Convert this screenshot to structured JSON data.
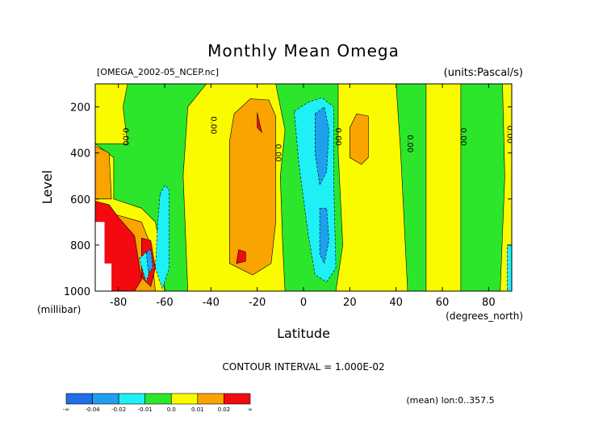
{
  "chart_data": {
    "type": "heatmap",
    "title": "Monthly Mean Omega",
    "file_label": "[OMEGA_2002-05_NCEP.nc]",
    "units_label": "(units:Pascal/s)",
    "xlabel": "Latitude",
    "x_units_label": "(degrees_north)",
    "ylabel": "Level",
    "y_units_label": "(millibar)",
    "xlim": [
      -90,
      90
    ],
    "ylim": [
      1000,
      100
    ],
    "x_ticks": [
      -80,
      -60,
      -40,
      -20,
      0,
      20,
      40,
      60,
      80
    ],
    "x_tick_labels": [
      "-80",
      "-60",
      "-40",
      "-20",
      "0",
      "20",
      "40",
      "60",
      "80"
    ],
    "y_ticks": [
      200,
      400,
      600,
      800,
      1000
    ],
    "y_tick_labels": [
      "200",
      "400",
      "600",
      "800",
      "1000"
    ],
    "contour_interval_text": "CONTOUR INTERVAL = 1.000E-02",
    "footnote": "(mean) lon:0..357.5",
    "contour_line_label": "0.00",
    "colorbar": {
      "labels": [
        "-∞",
        "-0.04",
        "-0.02",
        "-0.01",
        "0.0",
        "0.01",
        "0.02",
        "∞"
      ],
      "colors": [
        "#1f6fe8",
        "#1fa0ec",
        "#1ff0f6",
        "#2ce62c",
        "#fbfb00",
        "#f9a400",
        "#f20a10"
      ],
      "bounds": [
        "-inf",
        -0.04,
        -0.02,
        -0.01,
        0.0,
        0.01,
        0.02,
        "inf"
      ]
    },
    "regions": [
      {
        "level": "positive_weak",
        "value_range": [
          0.0,
          0.01
        ],
        "color": "#fbfb00",
        "polygon": [
          [
            -90,
            360
          ],
          [
            -82,
            420
          ],
          [
            -82,
            600
          ],
          [
            -70,
            640
          ],
          [
            -64,
            700
          ],
          [
            -62,
            800
          ],
          [
            -60,
            1000
          ],
          [
            -90,
            1000
          ]
        ]
      },
      {
        "level": "positive_weak",
        "value_range": [
          0.0,
          0.01
        ],
        "color": "#fbfb00",
        "polygon": [
          [
            -90,
            100
          ],
          [
            -76,
            100
          ],
          [
            -78,
            200
          ],
          [
            -76,
            360
          ],
          [
            -90,
            360
          ]
        ]
      },
      {
        "level": "positive_weak",
        "value_range": [
          0.0,
          0.01
        ],
        "color": "#fbfb00",
        "polygon": [
          [
            -50,
            200
          ],
          [
            -42,
            100
          ],
          [
            -12,
            100
          ],
          [
            -10,
            200
          ],
          [
            -8,
            300
          ],
          [
            -10,
            500
          ],
          [
            -9,
            800
          ],
          [
            -8,
            1000
          ],
          [
            -50,
            1000
          ],
          [
            -52,
            500
          ]
        ]
      },
      {
        "level": "positive_weak",
        "value_range": [
          0.0,
          0.01
        ],
        "color": "#fbfb00",
        "polygon": [
          [
            15,
            100
          ],
          [
            40,
            100
          ],
          [
            42,
            400
          ],
          [
            45,
            1000
          ],
          [
            14,
            1000
          ],
          [
            17,
            800
          ],
          [
            15,
            400
          ]
        ]
      },
      {
        "level": "positive_weak",
        "value_range": [
          0.0,
          0.01
        ],
        "color": "#fbfb00",
        "polygon": [
          [
            53,
            100
          ],
          [
            68,
            100
          ],
          [
            68,
            1000
          ],
          [
            53,
            1000
          ]
        ]
      },
      {
        "level": "positive_weak",
        "value_range": [
          0.0,
          0.01
        ],
        "color": "#fbfb00",
        "polygon": [
          [
            86,
            100
          ],
          [
            90,
            100
          ],
          [
            90,
            1000
          ],
          [
            85,
            1000
          ],
          [
            87,
            500
          ]
        ]
      },
      {
        "level": "positive_mid",
        "value_range": [
          0.01,
          0.02
        ],
        "color": "#f9a400",
        "polygon": [
          [
            -90,
            370
          ],
          [
            -84,
            400
          ],
          [
            -83,
            600
          ],
          [
            -90,
            600
          ]
        ]
      },
      {
        "level": "positive_mid",
        "value_range": [
          0.01,
          0.02
        ],
        "color": "#f9a400",
        "polygon": [
          [
            -90,
            640
          ],
          [
            -84,
            660
          ],
          [
            -77,
            680
          ],
          [
            -70,
            700
          ],
          [
            -66,
            800
          ],
          [
            -64,
            1000
          ],
          [
            -90,
            1000
          ]
        ]
      },
      {
        "level": "positive_mid",
        "value_range": [
          0.01,
          0.02
        ],
        "color": "#f9a400",
        "polygon": [
          [
            -30,
            230
          ],
          [
            -23,
            165
          ],
          [
            -15,
            170
          ],
          [
            -12,
            240
          ],
          [
            -12,
            700
          ],
          [
            -14,
            880
          ],
          [
            -22,
            930
          ],
          [
            -32,
            880
          ],
          [
            -32,
            350
          ]
        ]
      },
      {
        "level": "positive_mid",
        "value_range": [
          0.01,
          0.02
        ],
        "color": "#f9a400",
        "polygon": [
          [
            20,
            290
          ],
          [
            23,
            230
          ],
          [
            28,
            240
          ],
          [
            28,
            420
          ],
          [
            25,
            450
          ],
          [
            20,
            420
          ]
        ]
      },
      {
        "level": "positive_strong",
        "value_range": [
          0.02,
          "inf"
        ],
        "color": "#f20a10",
        "polygon": [
          [
            -90,
            610
          ],
          [
            -84,
            625
          ],
          [
            -80,
            680
          ],
          [
            -73,
            760
          ],
          [
            -70,
            950
          ],
          [
            -73,
            1000
          ],
          [
            -90,
            1000
          ]
        ]
      },
      {
        "level": "positive_strong",
        "value_range": [
          0.02,
          "inf"
        ],
        "color": "#f20a10",
        "polygon": [
          [
            -70,
            770
          ],
          [
            -66,
            780
          ],
          [
            -64,
            900
          ],
          [
            -66,
            980
          ],
          [
            -70,
            940
          ]
        ]
      },
      {
        "level": "positive_strong",
        "value_range": [
          0.02,
          "inf"
        ],
        "color": "#f20a10",
        "polygon": [
          [
            -20,
            225
          ],
          [
            -19,
            270
          ],
          [
            -18,
            310
          ],
          [
            -20,
            290
          ]
        ]
      },
      {
        "level": "positive_strong",
        "value_range": [
          0.02,
          "inf"
        ],
        "color": "#f20a10",
        "polygon": [
          [
            -28,
            820
          ],
          [
            -25,
            830
          ],
          [
            -25,
            870
          ],
          [
            -29,
            880
          ]
        ]
      },
      {
        "level": "negative_weak",
        "value_range": [
          -0.02,
          -0.01
        ],
        "color": "#1ff0f6",
        "polygon": [
          [
            -4,
            220
          ],
          [
            2,
            180
          ],
          [
            8,
            160
          ],
          [
            13,
            200
          ],
          [
            13,
            500
          ],
          [
            14,
            900
          ],
          [
            10,
            960
          ],
          [
            5,
            930
          ],
          [
            2,
            750
          ],
          [
            0,
            600
          ],
          [
            -2,
            450
          ]
        ]
      },
      {
        "level": "negative_weak",
        "value_range": [
          -0.02,
          -0.01
        ],
        "color": "#1ff0f6",
        "polygon": [
          [
            -62,
            580
          ],
          [
            -60,
            540
          ],
          [
            -58,
            560
          ],
          [
            -58,
            900
          ],
          [
            -61,
            990
          ],
          [
            -64,
            900
          ],
          [
            -63,
            700
          ]
        ]
      },
      {
        "level": "negative_weak",
        "value_range": [
          -0.02,
          -0.01
        ],
        "color": "#1ff0f6",
        "polygon": [
          [
            -71,
            860
          ],
          [
            -68,
            830
          ],
          [
            -66,
            900
          ],
          [
            -68,
            960
          ]
        ]
      },
      {
        "level": "negative_weak",
        "value_range": [
          -0.02,
          -0.01
        ],
        "color": "#1ff0f6",
        "polygon": [
          [
            88,
            800
          ],
          [
            90,
            800
          ],
          [
            90,
            1000
          ],
          [
            88,
            1000
          ]
        ]
      },
      {
        "level": "negative_mid",
        "value_range": [
          -0.04,
          -0.02
        ],
        "color": "#1fa0ec",
        "polygon": [
          [
            5,
            230
          ],
          [
            9,
            200
          ],
          [
            11,
            300
          ],
          [
            10,
            480
          ],
          [
            7,
            540
          ],
          [
            5,
            400
          ]
        ]
      },
      {
        "level": "negative_mid",
        "value_range": [
          -0.04,
          -0.02
        ],
        "color": "#1fa0ec",
        "polygon": [
          [
            7,
            640
          ],
          [
            10,
            640
          ],
          [
            11,
            780
          ],
          [
            9,
            880
          ],
          [
            7,
            840
          ]
        ]
      },
      {
        "level": "negative_mid",
        "value_range": [
          -0.04,
          -0.02
        ],
        "color": "#1fa0ec",
        "polygon": [
          [
            -68,
            830
          ],
          [
            -66,
            820
          ],
          [
            -65,
            900
          ],
          [
            -67,
            920
          ]
        ]
      },
      {
        "level": "undefined",
        "value_range": null,
        "color": "#ffffff",
        "polygon": [
          [
            -90,
            700
          ],
          [
            -86,
            700
          ],
          [
            -86,
            880
          ],
          [
            -83,
            880
          ],
          [
            -83,
            1000
          ],
          [
            -90,
            1000
          ]
        ]
      }
    ],
    "zero_contour_label_positions": [
      [
        -78,
        330
      ],
      [
        -40,
        280
      ],
      [
        -12,
        400
      ],
      [
        14,
        330
      ],
      [
        45,
        360
      ],
      [
        68,
        330
      ],
      [
        88,
        320
      ]
    ],
    "background_level": {
      "value_range": [
        -0.01,
        0.0
      ],
      "color": "#2ce62c"
    }
  }
}
